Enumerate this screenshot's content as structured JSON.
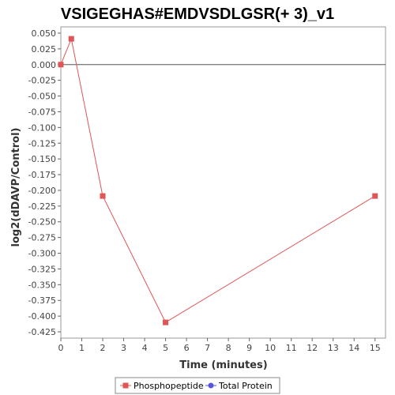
{
  "chart_data": {
    "type": "line",
    "title": "VSIGEGHAS#EMDVSDLGSR(+ 3)_v1",
    "xlabel": "Time (minutes)",
    "ylabel": "log2(dDAVP/Control)",
    "xlim": [
      0,
      15.5
    ],
    "ylim": [
      -0.435,
      0.06
    ],
    "xticks": [
      0,
      1,
      2,
      3,
      4,
      5,
      6,
      7,
      8,
      9,
      10,
      11,
      12,
      13,
      14,
      15
    ],
    "yticks": [
      0.05,
      0.025,
      0.0,
      -0.025,
      -0.05,
      -0.075,
      -0.1,
      -0.125,
      -0.15,
      -0.175,
      -0.2,
      -0.225,
      -0.25,
      -0.275,
      -0.3,
      -0.325,
      -0.35,
      -0.375,
      -0.4,
      -0.425
    ],
    "ytick_labels": [
      "0.050",
      "0.025",
      "0.000",
      "-0.025",
      "-0.050",
      "-0.075",
      "-0.100",
      "-0.125",
      "-0.150",
      "-0.175",
      "-0.200",
      "-0.225",
      "-0.250",
      "-0.275",
      "-0.300",
      "-0.325",
      "-0.350",
      "-0.375",
      "-0.400",
      "-0.425"
    ],
    "zero_line": true,
    "grid": false,
    "legend_position": "bottom",
    "series": [
      {
        "name": "Phosphopeptide",
        "color": "#e05555",
        "marker": "square",
        "x": [
          0,
          0.5,
          2,
          5,
          15
        ],
        "y": [
          0.0,
          0.041,
          -0.209,
          -0.41,
          -0.209
        ]
      },
      {
        "name": "Total Protein",
        "color": "#5555e0",
        "marker": "circle",
        "x": [],
        "y": []
      }
    ]
  }
}
